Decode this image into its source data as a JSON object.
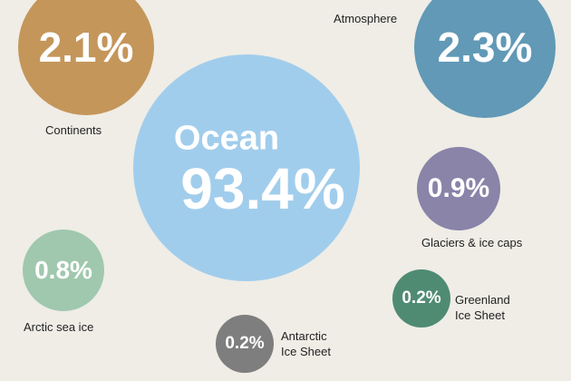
{
  "chart_data": {
    "type": "bubble",
    "categories": [
      "Ocean",
      "Continents",
      "Atmosphere",
      "Glaciers & ice caps",
      "Arctic sea ice",
      "Antarctic Ice Sheet",
      "Greenland Ice Sheet"
    ],
    "values": [
      93.4,
      2.1,
      2.3,
      0.9,
      0.8,
      0.2,
      0.2
    ],
    "value_labels": [
      "93.4%",
      "2.1%",
      "2.3%",
      "0.9%",
      "0.8%",
      "0.2%",
      "0.2%"
    ],
    "colors": [
      "#a1cdec",
      "#c4965a",
      "#6199b6",
      "#8984a8",
      "#a0c8ae",
      "#7e7e7e",
      "#4f8b73"
    ]
  }
}
